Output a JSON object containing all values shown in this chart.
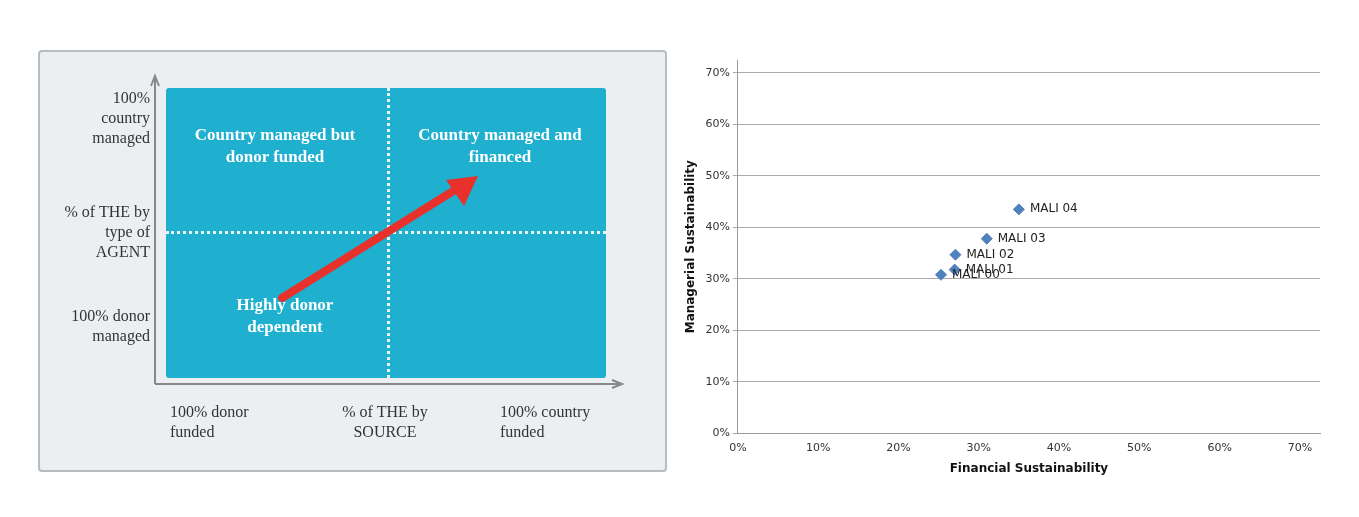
{
  "chart_data": [
    {
      "type": "other",
      "annotations": [
        "100% country managed",
        "% of THE by type of AGENT",
        "100% donor managed",
        "100% donor funded",
        "% of THE by SOURCE",
        "100% country funded",
        "Country managed but donor funded",
        "Country managed and financed",
        "Highly donor dependent"
      ]
    },
    {
      "type": "scatter",
      "xlabel": "Financial Sustainability",
      "ylabel": "Managerial Sustainability",
      "series": [
        {
          "name": "MALI 00",
          "color": "#4f81bd",
          "x": [
            25.3
          ],
          "values": [
            30.8
          ]
        },
        {
          "name": "MALI 01",
          "color": "#4f81bd",
          "x": [
            27
          ],
          "values": [
            31.8
          ]
        },
        {
          "name": "MALI 02",
          "color": "#4f81bd",
          "x": [
            27.1
          ],
          "values": [
            34.7
          ]
        },
        {
          "name": "MALI 03",
          "color": "#4f81bd",
          "x": [
            31
          ],
          "values": [
            37.8
          ]
        },
        {
          "name": "MALI 04",
          "color": "#4f81bd",
          "x": [
            35
          ],
          "values": [
            43.5
          ]
        }
      ],
      "xlim": [
        0,
        72.5
      ],
      "ylim": [
        0,
        72.5
      ],
      "xticks": [
        {
          "value": 0,
          "label": "0%"
        },
        {
          "value": 10,
          "label": "10%"
        },
        {
          "value": 20,
          "label": "20%"
        },
        {
          "value": 30,
          "label": "30%"
        },
        {
          "value": 40,
          "label": "40%"
        },
        {
          "value": 50,
          "label": "50%"
        },
        {
          "value": 60,
          "label": "60%"
        },
        {
          "value": 70,
          "label": "70%"
        }
      ],
      "yticks": [
        {
          "value": 0,
          "label": "0%"
        },
        {
          "value": 10,
          "label": "10%"
        },
        {
          "value": 20,
          "label": "20%"
        },
        {
          "value": 30,
          "label": "30%"
        },
        {
          "value": 40,
          "label": "40%"
        },
        {
          "value": 50,
          "label": "50%"
        },
        {
          "value": 60,
          "label": "60%"
        },
        {
          "value": 70,
          "label": "70%"
        }
      ],
      "grid": "y",
      "marker": "diamond",
      "legend": false
    }
  ]
}
